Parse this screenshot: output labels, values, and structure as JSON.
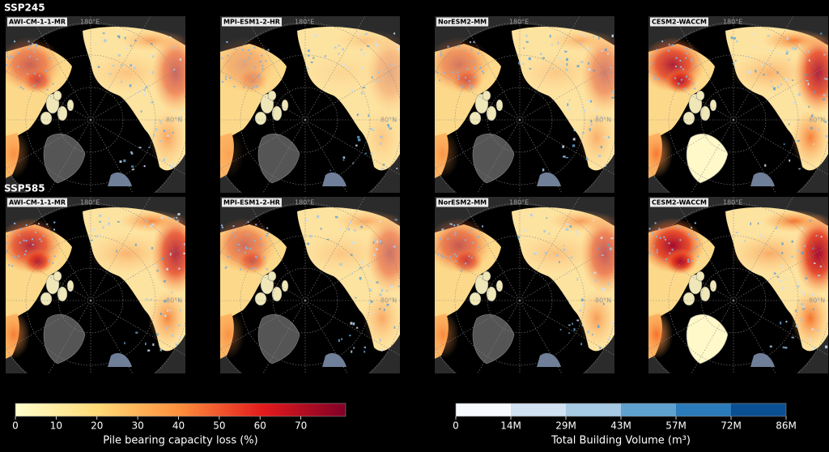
{
  "map_figure": {
    "rows": [
      {
        "label": "SSP245",
        "panels": [
          "AWI-CM-1-1-MR",
          "MPI-ESM1-2-HR",
          "NorESM2-MM",
          "CESM2-WACCM"
        ]
      },
      {
        "label": "SSP585",
        "panels": [
          "AWI-CM-1-1-MR",
          "MPI-ESM1-2-HR",
          "NorESM2-MM",
          "CESM2-WACCM"
        ]
      }
    ],
    "lon_label": "180°E",
    "lat_label": "80°N",
    "colorbars": [
      {
        "label": "Pile bearing capacity loss (%)",
        "lim": [
          0,
          81
        ],
        "ticks": [
          0,
          10,
          20,
          30,
          40,
          50,
          60,
          70
        ],
        "colors": [
          "#ffffcc",
          "#fed976",
          "#fd8d3c",
          "#e31a1c",
          "#800026"
        ],
        "discrete": false
      },
      {
        "label": "Total Building Volume (m³)",
        "lim": [
          0,
          86000000
        ],
        "ticks": [
          0,
          {
            "value": 14333333,
            "label": "14M"
          },
          {
            "value": 28666667,
            "label": "29M"
          },
          {
            "value": 43000000,
            "label": "43M"
          },
          {
            "value": 57333333,
            "label": "57M"
          },
          {
            "value": 71666667,
            "label": "72M"
          },
          {
            "value": 86000000,
            "label": "86M"
          }
        ],
        "colors": [
          "#f7fbff",
          "#d0e1f2",
          "#a6c9e4",
          "#5fa2d0",
          "#2b7bba",
          "#0b4f93"
        ],
        "discrete": true
      }
    ]
  }
}
